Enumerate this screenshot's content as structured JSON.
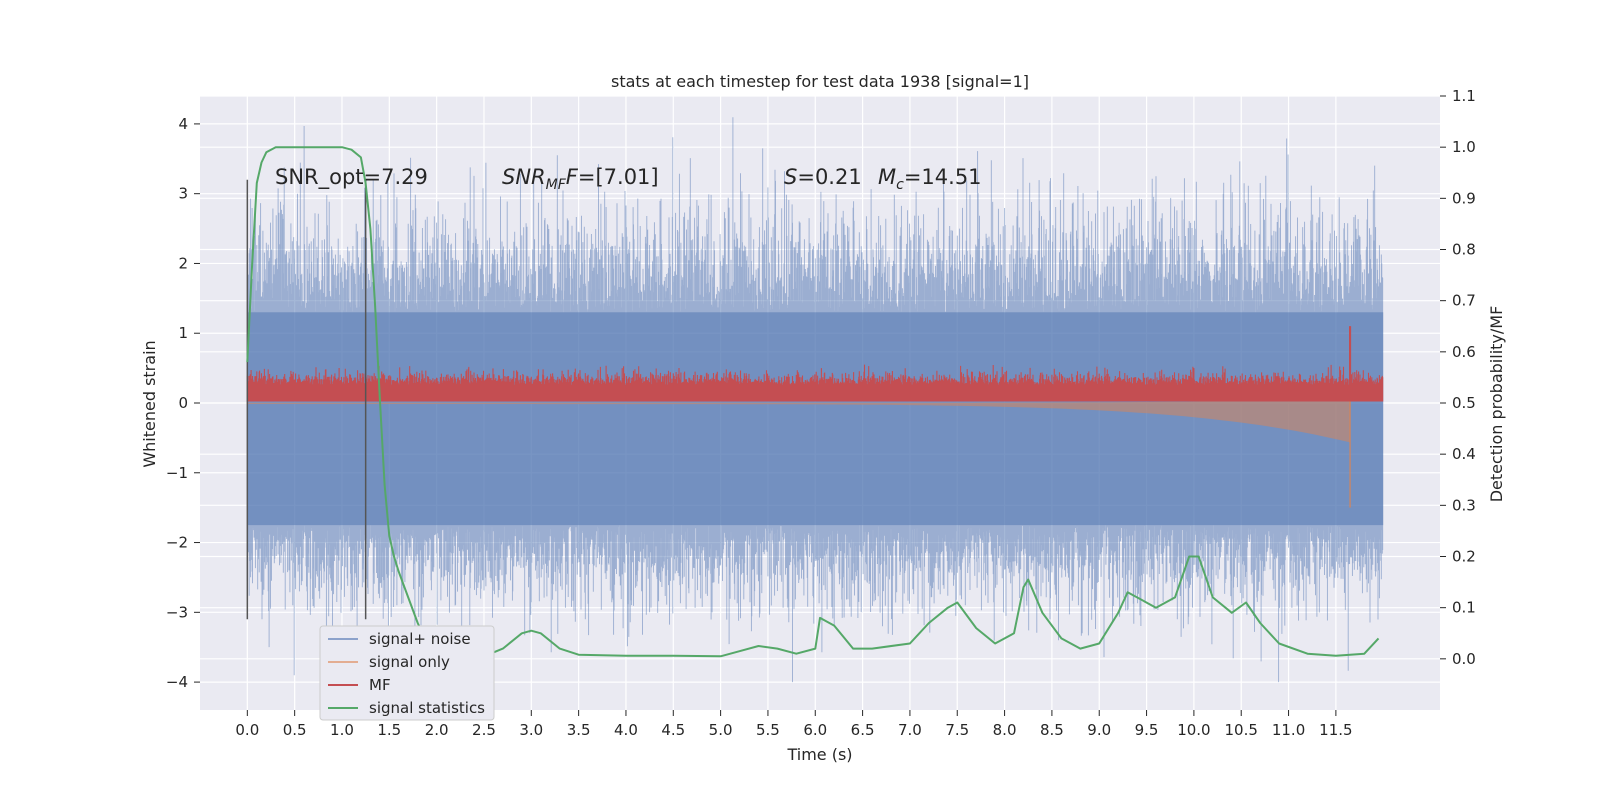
{
  "chart_data": {
    "type": "line",
    "title": "stats at each timestep for test data 1938 [signal=1]",
    "xlabel": "Time (s)",
    "ylabel": "Whitened strain",
    "y2label": "Detection probability/MF",
    "xlim": [
      -0.5,
      12.6
    ],
    "ylim": [
      -4.4,
      4.4
    ],
    "y2lim": [
      -0.1,
      1.1
    ],
    "x_ticks": [
      "0.0",
      "0.5",
      "1.0",
      "1.5",
      "2.0",
      "2.5",
      "3.0",
      "3.5",
      "4.0",
      "4.5",
      "5.0",
      "5.5",
      "6.0",
      "6.5",
      "7.0",
      "7.5",
      "8.0",
      "8.5",
      "9.0",
      "9.5",
      "10.0",
      "10.5",
      "11.0",
      "11.5"
    ],
    "y_ticks": [
      "4",
      "3",
      "2",
      "1",
      "0",
      "−1",
      "−2",
      "−3",
      "−4"
    ],
    "y2_ticks": [
      "1.1",
      "1.0",
      "0.9",
      "0.8",
      "0.7",
      "0.6",
      "0.5",
      "0.4",
      "0.3",
      "0.2",
      "0.1",
      "0.0"
    ],
    "grid": true,
    "legend_position": "lower-left",
    "annotations": {
      "snr_opt": "SNR_opt=7.29",
      "snr_mf_main": "SNR",
      "snr_mf_sub": "MF",
      "snr_mf_value": "=[7.01]",
      "s_main": "S",
      "s_value": "=0.21",
      "mc_main": "M",
      "mc_sub": "c",
      "mc_value": "=14.51"
    },
    "vertical_lines_x": [
      0.0,
      1.25
    ],
    "signal_window_x": [
      0.0,
      12.0
    ],
    "mf_peak": {
      "x": 11.65,
      "value": 0.65
    },
    "series": [
      {
        "name": "signal+ noise",
        "color": "#4c72b0",
        "alpha": 0.5
      },
      {
        "name": "signal only",
        "color": "#dd8452",
        "alpha": 0.5
      },
      {
        "name": "MF",
        "color": "#c44e52"
      },
      {
        "name": "signal statistics",
        "color": "#55a868",
        "x": [
          0.0,
          0.05,
          0.1,
          0.15,
          0.2,
          0.3,
          0.5,
          0.7,
          0.9,
          1.0,
          1.1,
          1.2,
          1.25,
          1.3,
          1.35,
          1.4,
          1.45,
          1.5,
          1.55,
          1.6,
          1.7,
          1.8,
          1.9,
          2.0,
          2.1,
          2.3,
          2.5,
          2.7,
          2.9,
          3.0,
          3.1,
          3.3,
          3.5,
          4.0,
          4.5,
          5.0,
          5.2,
          5.4,
          5.6,
          5.8,
          6.0,
          6.05,
          6.2,
          6.4,
          6.6,
          7.0,
          7.2,
          7.4,
          7.5,
          7.7,
          7.9,
          8.1,
          8.2,
          8.25,
          8.4,
          8.6,
          8.8,
          9.0,
          9.2,
          9.3,
          9.4,
          9.6,
          9.8,
          9.95,
          10.05,
          10.2,
          10.4,
          10.55,
          10.7,
          10.9,
          11.2,
          11.5,
          11.8,
          11.95
        ],
        "y": [
          0.58,
          0.77,
          0.93,
          0.97,
          0.99,
          1.0,
          1.0,
          1.0,
          1.0,
          1.0,
          0.995,
          0.98,
          0.93,
          0.84,
          0.69,
          0.51,
          0.34,
          0.24,
          0.2,
          0.17,
          0.12,
          0.07,
          0.03,
          0.01,
          0.005,
          0.003,
          0.005,
          0.02,
          0.05,
          0.055,
          0.05,
          0.02,
          0.008,
          0.006,
          0.006,
          0.005,
          0.015,
          0.025,
          0.02,
          0.01,
          0.02,
          0.08,
          0.065,
          0.02,
          0.02,
          0.03,
          0.07,
          0.1,
          0.11,
          0.06,
          0.03,
          0.05,
          0.14,
          0.155,
          0.09,
          0.04,
          0.02,
          0.03,
          0.09,
          0.13,
          0.12,
          0.1,
          0.12,
          0.2,
          0.2,
          0.12,
          0.09,
          0.11,
          0.07,
          0.03,
          0.01,
          0.006,
          0.01,
          0.04
        ]
      }
    ]
  }
}
